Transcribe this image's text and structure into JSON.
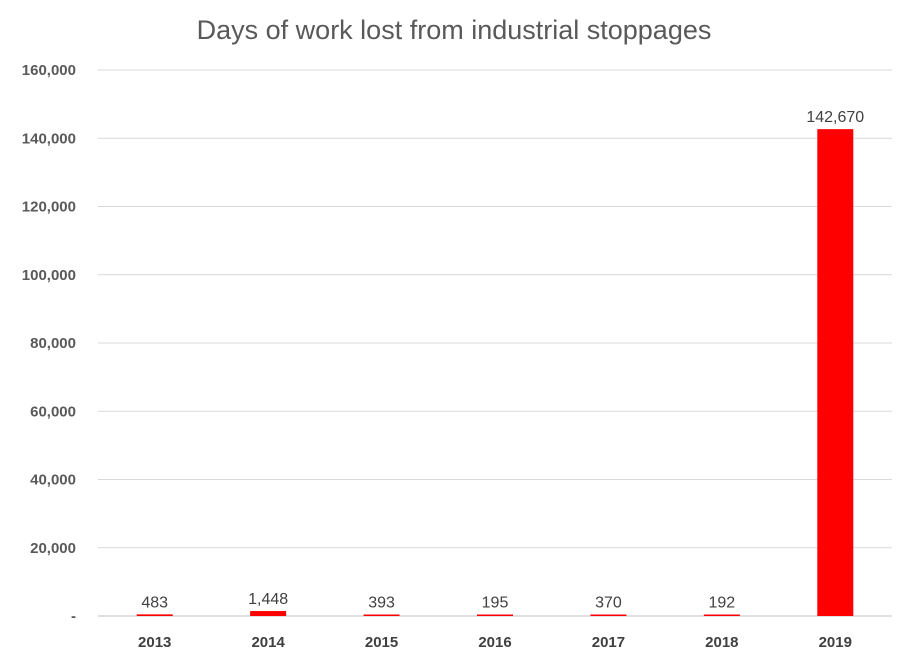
{
  "chart_data": {
    "type": "bar",
    "title": "Days of work lost from industrial stoppages",
    "categories": [
      "2013",
      "2014",
      "2015",
      "2016",
      "2017",
      "2018",
      "2019"
    ],
    "values": [
      483,
      1448,
      393,
      195,
      370,
      192,
      142670
    ],
    "data_labels": [
      "483",
      "1,448",
      "393",
      "195",
      "370",
      "192",
      "142,670"
    ],
    "ylim": [
      0,
      160000
    ],
    "yticks": [
      0,
      20000,
      40000,
      60000,
      80000,
      100000,
      120000,
      140000,
      160000
    ],
    "ytick_labels": [
      "-",
      "20,000",
      "40,000",
      "60,000",
      "80,000",
      "100,000",
      "120,000",
      "140,000",
      "160,000"
    ],
    "grid": true,
    "bar_color": "#ff0000",
    "xlabel": "",
    "ylabel": ""
  }
}
